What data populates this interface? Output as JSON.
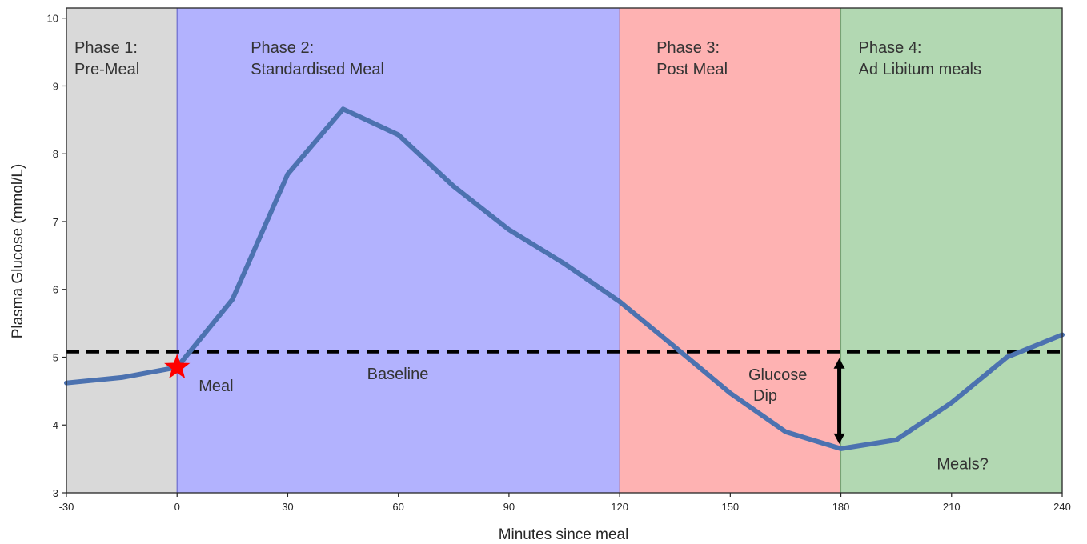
{
  "chart_data": {
    "type": "line",
    "xlabel": "Minutes since meal",
    "ylabel": "Plasma Glucose (mmol/L)",
    "xlim": [
      -30,
      240
    ],
    "ylim": [
      3,
      10.15
    ],
    "x_ticks": [
      -30,
      0,
      30,
      60,
      90,
      120,
      150,
      180,
      210,
      240
    ],
    "y_ticks": [
      3,
      4,
      5,
      6,
      7,
      8,
      9,
      10
    ],
    "grid": false,
    "legend": "none",
    "series": [
      {
        "color": "#4c72b0",
        "x": [
          -30,
          -15,
          0,
          15,
          30,
          45,
          60,
          75,
          90,
          105,
          120,
          135,
          150,
          165,
          180,
          195,
          210,
          225,
          240
        ],
        "y": [
          4.62,
          4.7,
          4.85,
          5.85,
          7.7,
          8.66,
          8.28,
          7.52,
          6.88,
          6.38,
          5.82,
          5.15,
          4.47,
          3.9,
          3.65,
          3.78,
          4.33,
          5.0,
          5.33
        ]
      }
    ],
    "baseline": {
      "label": "Baseline",
      "y": 5.08,
      "style": "dashed",
      "color": "#000000"
    },
    "phases": [
      {
        "name": "Phase 1:",
        "subtitle": "Pre-Meal",
        "x_start": -30,
        "x_end": 0,
        "color": "#d9d9d9"
      },
      {
        "name": "Phase 2:",
        "subtitle": "Standardised Meal",
        "x_start": 0,
        "x_end": 120,
        "color": "#b2b2fe"
      },
      {
        "name": "Phase 3:",
        "subtitle": "Post Meal",
        "x_start": 120,
        "x_end": 180,
        "color": "#feb2b2"
      },
      {
        "name": "Phase 4:",
        "subtitle": "Ad Libitum meals",
        "x_start": 180,
        "x_end": 240,
        "color": "#b2d8b2"
      }
    ],
    "meal_marker": {
      "label": "Meal",
      "x": 0,
      "y": 4.85,
      "marker": "star",
      "color": "#ff0000"
    },
    "glucose_dip": {
      "label_line1": "Glucose",
      "label_line2": "Dip",
      "x": 180,
      "y_top": 5.08,
      "y_bottom": 3.65
    },
    "annotations": [
      {
        "text": "Meals?",
        "x": 206,
        "y": 3.35
      }
    ]
  }
}
